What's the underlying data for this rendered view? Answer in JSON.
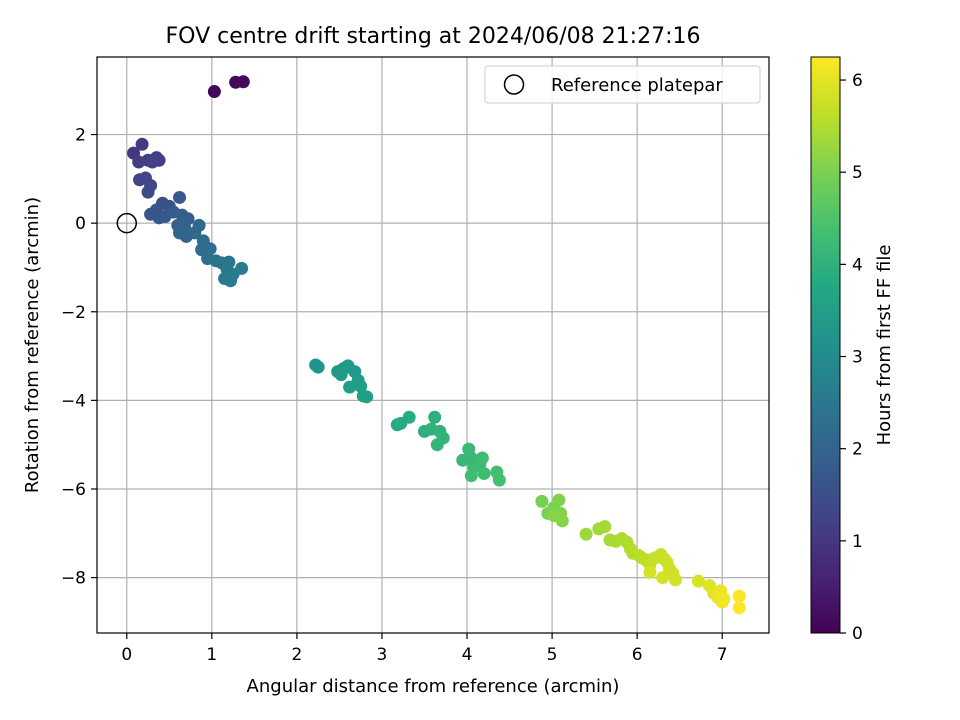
{
  "chart_data": {
    "type": "scatter",
    "title": "FOV centre drift starting at 2024/06/08 21:27:16",
    "xlabel": "Angular distance from reference (arcmin)",
    "ylabel": "Rotation from reference (arcmin)",
    "xlim": [
      -0.35,
      7.55
    ],
    "ylim": [
      -9.25,
      3.75
    ],
    "xticks": [
      0,
      1,
      2,
      3,
      4,
      5,
      6,
      7
    ],
    "yticks": [
      -8,
      -6,
      -4,
      -2,
      0,
      2
    ],
    "grid": true,
    "legend": {
      "position": "top-right",
      "entries": [
        "Reference platepar"
      ]
    },
    "reference_point": {
      "x": 0,
      "y": 0
    },
    "colorbar": {
      "label": "Hours from first FF file",
      "colormap": "viridis",
      "range": [
        0,
        6.25
      ],
      "ticks": [
        0,
        1,
        2,
        3,
        4,
        5,
        6
      ]
    },
    "points": [
      [
        1.03,
        2.97,
        0.05
      ],
      [
        1.28,
        3.18,
        0.1
      ],
      [
        1.37,
        3.19,
        0.15
      ],
      [
        0.08,
        1.58,
        1.0
      ],
      [
        0.18,
        1.78,
        1.05
      ],
      [
        0.14,
        1.38,
        1.1
      ],
      [
        0.25,
        1.42,
        1.12
      ],
      [
        0.35,
        1.48,
        1.15
      ],
      [
        0.38,
        1.42,
        1.18
      ],
      [
        0.3,
        1.38,
        1.2
      ],
      [
        0.15,
        0.98,
        1.25
      ],
      [
        0.22,
        1.02,
        1.3
      ],
      [
        0.28,
        0.85,
        1.35
      ],
      [
        0.25,
        0.7,
        1.4
      ],
      [
        0.42,
        0.45,
        1.5
      ],
      [
        0.5,
        0.38,
        1.55
      ],
      [
        0.35,
        0.3,
        1.6
      ],
      [
        0.28,
        0.2,
        1.65
      ],
      [
        0.38,
        0.12,
        1.7
      ],
      [
        0.45,
        0.15,
        1.72
      ],
      [
        0.62,
        0.58,
        1.75
      ],
      [
        0.55,
        0.25,
        1.8
      ],
      [
        0.65,
        0.18,
        1.82
      ],
      [
        0.72,
        0.1,
        1.85
      ],
      [
        0.6,
        -0.05,
        1.9
      ],
      [
        0.68,
        -0.1,
        1.95
      ],
      [
        0.62,
        -0.22,
        2.0
      ],
      [
        0.7,
        -0.3,
        2.02
      ],
      [
        0.8,
        -0.22,
        2.05
      ],
      [
        0.85,
        -0.05,
        2.1
      ],
      [
        0.9,
        -0.4,
        2.15
      ],
      [
        0.88,
        -0.6,
        2.2
      ],
      [
        0.98,
        -0.58,
        2.25
      ],
      [
        0.95,
        -0.8,
        2.3
      ],
      [
        1.05,
        -0.85,
        2.35
      ],
      [
        1.12,
        -0.9,
        2.4
      ],
      [
        1.2,
        -0.88,
        2.45
      ],
      [
        1.18,
        -1.05,
        2.5
      ],
      [
        1.25,
        -1.15,
        2.52
      ],
      [
        1.15,
        -1.25,
        2.55
      ],
      [
        1.22,
        -1.3,
        2.58
      ],
      [
        1.35,
        -1.02,
        2.6
      ],
      [
        2.22,
        -3.2,
        3.2
      ],
      [
        2.25,
        -3.25,
        3.22
      ],
      [
        2.48,
        -3.35,
        3.3
      ],
      [
        2.55,
        -3.28,
        3.32
      ],
      [
        2.6,
        -3.22,
        3.35
      ],
      [
        2.68,
        -3.35,
        3.38
      ],
      [
        2.52,
        -3.42,
        3.4
      ],
      [
        2.72,
        -3.55,
        3.42
      ],
      [
        2.62,
        -3.7,
        3.45
      ],
      [
        2.75,
        -3.68,
        3.48
      ],
      [
        2.78,
        -3.9,
        3.5
      ],
      [
        2.82,
        -3.92,
        3.52
      ],
      [
        3.18,
        -4.55,
        3.8
      ],
      [
        3.22,
        -4.52,
        3.82
      ],
      [
        3.32,
        -4.38,
        3.85
      ],
      [
        3.5,
        -4.7,
        3.95
      ],
      [
        3.58,
        -4.65,
        3.98
      ],
      [
        3.62,
        -4.38,
        4.0
      ],
      [
        3.68,
        -4.7,
        4.02
      ],
      [
        3.72,
        -4.85,
        4.05
      ],
      [
        3.65,
        -5.0,
        4.08
      ],
      [
        3.95,
        -5.35,
        4.15
      ],
      [
        4.02,
        -5.1,
        4.18
      ],
      [
        4.05,
        -5.3,
        4.2
      ],
      [
        4.08,
        -5.5,
        4.22
      ],
      [
        4.15,
        -5.45,
        4.25
      ],
      [
        4.18,
        -5.3,
        4.28
      ],
      [
        4.2,
        -5.65,
        4.3
      ],
      [
        4.05,
        -5.7,
        4.32
      ],
      [
        4.35,
        -5.62,
        4.35
      ],
      [
        4.38,
        -5.8,
        4.38
      ],
      [
        4.88,
        -6.28,
        4.95
      ],
      [
        4.95,
        -6.55,
        5.0
      ],
      [
        5.02,
        -6.42,
        5.02
      ],
      [
        5.08,
        -6.25,
        5.05
      ],
      [
        5.1,
        -6.55,
        5.08
      ],
      [
        5.12,
        -6.72,
        5.1
      ],
      [
        5.02,
        -6.6,
        5.12
      ],
      [
        5.4,
        -7.02,
        5.3
      ],
      [
        5.55,
        -6.9,
        5.35
      ],
      [
        5.62,
        -6.85,
        5.38
      ],
      [
        5.68,
        -7.15,
        5.42
      ],
      [
        5.75,
        -7.18,
        5.45
      ],
      [
        5.82,
        -7.12,
        5.48
      ],
      [
        5.88,
        -7.2,
        5.5
      ],
      [
        5.92,
        -7.35,
        5.52
      ],
      [
        5.95,
        -7.45,
        5.55
      ],
      [
        6.02,
        -7.5,
        5.58
      ],
      [
        6.05,
        -7.55,
        5.6
      ],
      [
        6.1,
        -7.6,
        5.62
      ],
      [
        6.15,
        -7.7,
        5.65
      ],
      [
        6.18,
        -7.58,
        5.68
      ],
      [
        6.22,
        -7.55,
        5.7
      ],
      [
        6.28,
        -7.48,
        5.72
      ],
      [
        6.32,
        -7.58,
        5.74
      ],
      [
        6.35,
        -7.65,
        5.76
      ],
      [
        6.38,
        -7.8,
        5.78
      ],
      [
        6.42,
        -7.9,
        5.8
      ],
      [
        6.45,
        -8.05,
        5.82
      ],
      [
        6.3,
        -8.0,
        5.84
      ],
      [
        6.15,
        -7.88,
        5.86
      ],
      [
        6.72,
        -8.08,
        5.9
      ],
      [
        6.85,
        -8.18,
        5.95
      ],
      [
        6.9,
        -8.35,
        6.0
      ],
      [
        6.95,
        -8.45,
        6.05
      ],
      [
        6.98,
        -8.3,
        6.08
      ],
      [
        7.0,
        -8.55,
        6.12
      ],
      [
        7.02,
        -8.48,
        6.15
      ],
      [
        7.2,
        -8.42,
        6.2
      ],
      [
        7.2,
        -8.68,
        6.22
      ]
    ]
  }
}
